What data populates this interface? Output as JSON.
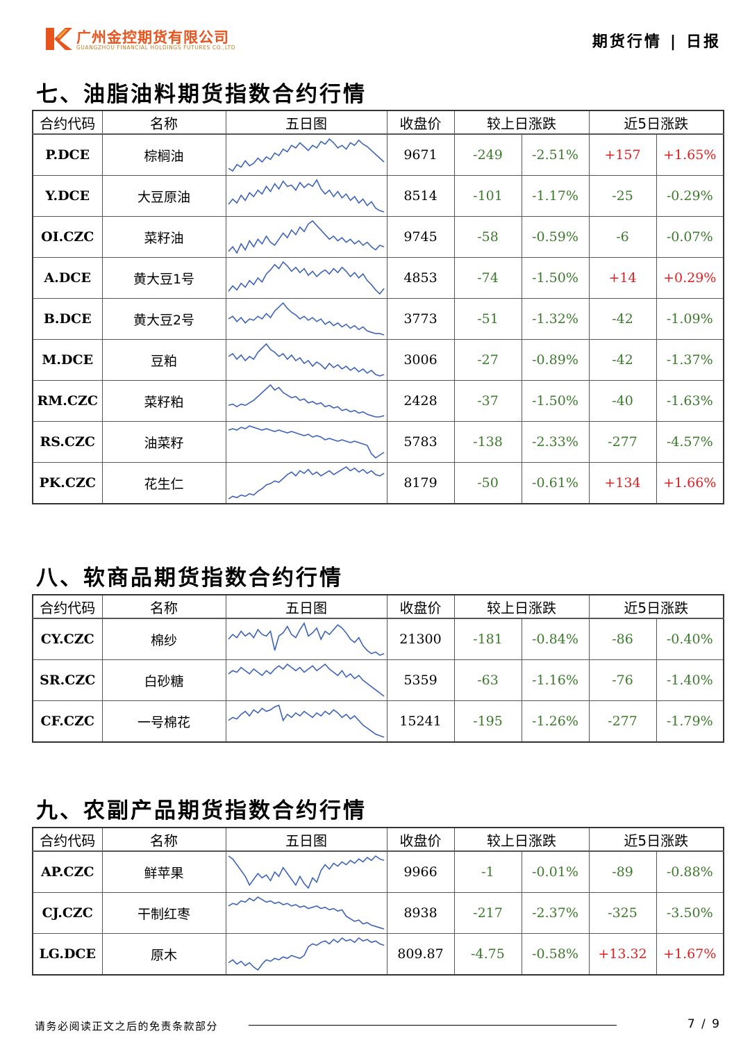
{
  "header": {
    "company_cn": "广州金控期货有限公司",
    "company_en": "GUANGZHOU FINANCIAL HOLDINGS FUTURES CO.,LTD",
    "report_type": "期货行情",
    "separator": "|",
    "report_freq": "日报"
  },
  "colors": {
    "up": "#e02020",
    "down": "#3a7a2a",
    "spark": "#3d63b8",
    "logo_red": "#e8541e",
    "logo_orange": "#f2a33a"
  },
  "columns": [
    "合约代码",
    "名称",
    "五日图",
    "收盘价",
    "较上日涨跌",
    "近5日涨跌"
  ],
  "sections": [
    {
      "title": "七、油脂油料期货指数合约行情",
      "rows": [
        {
          "code": "P.DCE",
          "name": "棕榈油",
          "close": "9671",
          "d_chg": "-249",
          "d_pct": "-2.51%",
          "w_chg": "+157",
          "w_pct": "+1.65%",
          "series": [
            32,
            30,
            35,
            33,
            38,
            34,
            36,
            40,
            37,
            41,
            39,
            44,
            42,
            47,
            45,
            50,
            48,
            52,
            49,
            46,
            50,
            48,
            53,
            51,
            55,
            52,
            48,
            50,
            47,
            52,
            50,
            54,
            51,
            49,
            46,
            43,
            40,
            37
          ]
        },
        {
          "code": "Y.DCE",
          "name": "大豆原油",
          "close": "8514",
          "d_chg": "-101",
          "d_pct": "-1.17%",
          "w_chg": "-25",
          "w_pct": "-0.29%",
          "series": [
            30,
            34,
            31,
            37,
            33,
            39,
            36,
            41,
            38,
            44,
            40,
            46,
            42,
            48,
            44,
            45,
            41,
            47,
            43,
            46,
            44,
            49,
            42,
            38,
            41,
            36,
            40,
            35,
            38,
            33,
            36,
            31,
            34,
            29,
            32,
            27,
            25,
            24
          ]
        },
        {
          "code": "OI.CZC",
          "name": "菜籽油",
          "close": "9745",
          "d_chg": "-58",
          "d_pct": "-0.59%",
          "w_chg": "-6",
          "w_pct": "-0.07%",
          "series": [
            30,
            33,
            29,
            35,
            31,
            37,
            33,
            38,
            35,
            40,
            36,
            34,
            38,
            42,
            39,
            44,
            41,
            46,
            43,
            48,
            50,
            47,
            44,
            41,
            38,
            40,
            37,
            39,
            36,
            38,
            35,
            37,
            34,
            36,
            33,
            31,
            34,
            33
          ]
        },
        {
          "code": "A.DCE",
          "name": "黄大豆1号",
          "close": "4853",
          "d_chg": "-74",
          "d_pct": "-1.50%",
          "w_chg": "+14",
          "w_pct": "+0.29%",
          "series": [
            30,
            34,
            31,
            36,
            33,
            38,
            35,
            40,
            37,
            43,
            46,
            50,
            47,
            52,
            49,
            45,
            48,
            44,
            47,
            42,
            45,
            41,
            44,
            46,
            43,
            47,
            44,
            48,
            45,
            41,
            44,
            40,
            43,
            38,
            35,
            31,
            28,
            32
          ]
        },
        {
          "code": "B.DCE",
          "name": "黄大豆2号",
          "close": "3773",
          "d_chg": "-51",
          "d_pct": "-1.32%",
          "w_chg": "-42",
          "w_pct": "-1.09%",
          "series": [
            38,
            40,
            36,
            39,
            35,
            38,
            37,
            40,
            38,
            42,
            39,
            44,
            47,
            50,
            46,
            43,
            41,
            38,
            40,
            37,
            39,
            36,
            38,
            34,
            36,
            33,
            35,
            32,
            34,
            31,
            33,
            30,
            32,
            29,
            28,
            27,
            27,
            26
          ]
        },
        {
          "code": "M.DCE",
          "name": "豆粕",
          "close": "3006",
          "d_chg": "-27",
          "d_pct": "-0.89%",
          "w_chg": "-42",
          "w_pct": "-1.37%",
          "series": [
            40,
            42,
            38,
            41,
            37,
            40,
            38,
            43,
            46,
            49,
            45,
            43,
            40,
            42,
            38,
            41,
            37,
            39,
            35,
            37,
            33,
            36,
            34,
            31,
            35,
            32,
            34,
            31,
            33,
            30,
            32,
            29,
            31,
            28,
            30,
            27,
            26,
            27
          ]
        },
        {
          "code": "RM.CZC",
          "name": "菜籽粕",
          "close": "2428",
          "d_chg": "-37",
          "d_pct": "-1.50%",
          "w_chg": "-40",
          "w_pct": "-1.63%",
          "series": [
            34,
            35,
            33,
            35,
            34,
            36,
            38,
            41,
            44,
            47,
            50,
            46,
            48,
            44,
            42,
            40,
            41,
            38,
            39,
            36,
            37,
            35,
            36,
            33,
            34,
            32,
            33,
            30,
            31,
            29,
            30,
            28,
            29,
            27,
            26,
            25,
            25,
            26
          ]
        },
        {
          "code": "RS.CZC",
          "name": "油菜籽",
          "close": "5783",
          "d_chg": "-138",
          "d_pct": "-2.33%",
          "w_chg": "-277",
          "w_pct": "-4.57%",
          "series": [
            50,
            51,
            50,
            52,
            51,
            53,
            52,
            51,
            50,
            51,
            50,
            49,
            50,
            49,
            48,
            49,
            48,
            47,
            46,
            47,
            45,
            46,
            45,
            43,
            44,
            43,
            42,
            43,
            42,
            41,
            42,
            41,
            40,
            39,
            33,
            30,
            32,
            34
          ]
        },
        {
          "code": "PK.CZC",
          "name": "花生仁",
          "close": "8179",
          "d_chg": "-50",
          "d_pct": "-0.61%",
          "w_chg": "+134",
          "w_pct": "+1.66%",
          "series": [
            22,
            24,
            23,
            25,
            24,
            26,
            25,
            28,
            30,
            33,
            34,
            36,
            35,
            38,
            41,
            43,
            40,
            44,
            42,
            45,
            41,
            43,
            40,
            42,
            44,
            41,
            43,
            45,
            47,
            44,
            46,
            43,
            45,
            42,
            44,
            41,
            40,
            42
          ]
        }
      ]
    },
    {
      "title": "八、软商品期货指数合约行情",
      "rows": [
        {
          "code": "CY.CZC",
          "name": "棉纱",
          "close": "21300",
          "d_chg": "-181",
          "d_pct": "-0.84%",
          "w_chg": "-86",
          "w_pct": "-0.40%",
          "series": [
            42,
            45,
            43,
            47,
            44,
            46,
            43,
            48,
            45,
            44,
            47,
            35,
            44,
            46,
            50,
            45,
            43,
            48,
            52,
            44,
            46,
            49,
            42,
            47,
            45,
            48,
            51,
            49,
            46,
            42,
            40,
            43,
            38,
            35,
            33,
            34,
            32,
            33
          ]
        },
        {
          "code": "SR.CZC",
          "name": "白砂糖",
          "close": "5359",
          "d_chg": "-63",
          "d_pct": "-1.16%",
          "w_chg": "-76",
          "w_pct": "-1.40%",
          "series": [
            42,
            44,
            43,
            46,
            44,
            42,
            45,
            43,
            41,
            44,
            42,
            45,
            47,
            45,
            48,
            46,
            44,
            46,
            43,
            45,
            47,
            44,
            46,
            48,
            45,
            43,
            41,
            44,
            40,
            42,
            39,
            41,
            38,
            36,
            34,
            32,
            30,
            28
          ]
        },
        {
          "code": "CF.CZC",
          "name": "一号棉花",
          "close": "15241",
          "d_chg": "-195",
          "d_pct": "-1.26%",
          "w_chg": "-277",
          "w_pct": "-1.79%",
          "series": [
            40,
            42,
            41,
            44,
            46,
            43,
            47,
            45,
            48,
            46,
            47,
            49,
            50,
            40,
            44,
            42,
            45,
            43,
            46,
            44,
            42,
            45,
            43,
            46,
            44,
            47,
            45,
            42,
            44,
            41,
            43,
            40,
            37,
            35,
            33,
            31,
            30,
            29
          ]
        }
      ]
    },
    {
      "title": "九、农副产品期货指数合约行情",
      "rows": [
        {
          "code": "AP.CZC",
          "name": "鲜苹果",
          "close": "9966",
          "d_chg": "-1",
          "d_pct": "-0.01%",
          "w_chg": "-89",
          "w_pct": "-0.88%",
          "series": [
            50,
            48,
            44,
            40,
            36,
            30,
            34,
            38,
            35,
            37,
            33,
            39,
            36,
            42,
            38,
            34,
            30,
            36,
            31,
            28,
            35,
            32,
            40,
            44,
            41,
            45,
            43,
            46,
            44,
            47,
            45,
            48,
            46,
            49,
            47,
            50,
            48,
            47
          ]
        },
        {
          "code": "CJ.CZC",
          "name": "干制红枣",
          "close": "8938",
          "d_chg": "-217",
          "d_pct": "-2.37%",
          "w_chg": "-325",
          "w_pct": "-3.50%",
          "series": [
            44,
            46,
            45,
            48,
            47,
            50,
            48,
            51,
            49,
            47,
            48,
            46,
            47,
            45,
            46,
            44,
            45,
            43,
            44,
            42,
            43,
            44,
            42,
            43,
            41,
            42,
            40,
            41,
            36,
            34,
            32,
            33,
            30,
            31,
            29,
            28,
            27,
            26
          ]
        },
        {
          "code": "LG.DCE",
          "name": "原木",
          "close": "809.87",
          "d_chg": "-4.75",
          "d_pct": "-0.58%",
          "w_chg": "+13.32",
          "w_pct": "+1.67%",
          "series": [
            25,
            27,
            24,
            26,
            23,
            25,
            22,
            20,
            24,
            27,
            26,
            28,
            27,
            29,
            28,
            30,
            29,
            28,
            30,
            36,
            38,
            37,
            39,
            40,
            38,
            41,
            39,
            42,
            40,
            41,
            39,
            42,
            40,
            41,
            39,
            40,
            38,
            37
          ]
        }
      ]
    }
  ],
  "footer": {
    "disclaimer": "请务必阅读正文之后的免责条款部分",
    "page": "7 / 9"
  }
}
